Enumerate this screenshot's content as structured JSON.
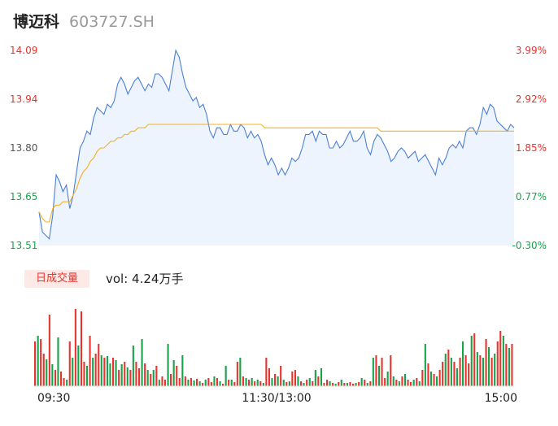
{
  "header": {
    "stock_name": "博迈科",
    "stock_code": "603727.SH"
  },
  "chart_data": [
    {
      "type": "line",
      "title": "",
      "series": [],
      "y_ticks": [
        "14.09",
        "13.94",
        "13.80",
        "13.65",
        "13.51"
      ],
      "pct_ticks": [
        "3.99%",
        "2.92%",
        "1.85%",
        "0.77%",
        "-0.30%"
      ],
      "ylim": [
        13.51,
        14.09
      ],
      "price": [
        13.61,
        13.55,
        13.54,
        13.53,
        13.6,
        13.72,
        13.7,
        13.67,
        13.69,
        13.62,
        13.66,
        13.73,
        13.8,
        13.82,
        13.85,
        13.84,
        13.89,
        13.92,
        13.91,
        13.9,
        13.93,
        13.92,
        13.94,
        13.99,
        14.01,
        13.99,
        13.96,
        13.98,
        14.0,
        14.01,
        13.99,
        13.97,
        13.99,
        13.98,
        14.02,
        14.02,
        14.01,
        13.99,
        13.97,
        14.03,
        14.09,
        14.07,
        14.02,
        13.98,
        13.96,
        13.94,
        13.95,
        13.92,
        13.93,
        13.9,
        13.85,
        13.83,
        13.86,
        13.86,
        13.84,
        13.84,
        13.87,
        13.85,
        13.85,
        13.87,
        13.86,
        13.83,
        13.85,
        13.83,
        13.84,
        13.82,
        13.78,
        13.75,
        13.77,
        13.75,
        13.72,
        13.74,
        13.72,
        13.74,
        13.77,
        13.76,
        13.77,
        13.8,
        13.84,
        13.84,
        13.85,
        13.82,
        13.85,
        13.84,
        13.84,
        13.8,
        13.8,
        13.82,
        13.8,
        13.81,
        13.83,
        13.85,
        13.82,
        13.82,
        13.83,
        13.85,
        13.8,
        13.78,
        13.82,
        13.84,
        13.83,
        13.81,
        13.79,
        13.76,
        13.77,
        13.79,
        13.8,
        13.79,
        13.77,
        13.78,
        13.79,
        13.76,
        13.77,
        13.78,
        13.76,
        13.74,
        13.72,
        13.77,
        13.75,
        13.77,
        13.8,
        13.81,
        13.8,
        13.82,
        13.8,
        13.85,
        13.86,
        13.86,
        13.84,
        13.87,
        13.92,
        13.9,
        13.93,
        13.92,
        13.88,
        13.87,
        13.86,
        13.85,
        13.87,
        13.86
      ],
      "avg_price": [
        13.61,
        13.59,
        13.58,
        13.58,
        13.62,
        13.63,
        13.63,
        13.64,
        13.64,
        13.64,
        13.66,
        13.68,
        13.71,
        13.73,
        13.74,
        13.76,
        13.77,
        13.79,
        13.8,
        13.8,
        13.81,
        13.82,
        13.82,
        13.83,
        13.83,
        13.84,
        13.84,
        13.85,
        13.85,
        13.86,
        13.86,
        13.86,
        13.87,
        13.87,
        13.87,
        13.87,
        13.87,
        13.87,
        13.87,
        13.87,
        13.87,
        13.87,
        13.87,
        13.87,
        13.87,
        13.87,
        13.87,
        13.87,
        13.87,
        13.87,
        13.87,
        13.87,
        13.87,
        13.87,
        13.87,
        13.87,
        13.87,
        13.87,
        13.87,
        13.87,
        13.87,
        13.87,
        13.87,
        13.87,
        13.87,
        13.87,
        13.86,
        13.86,
        13.86,
        13.86,
        13.86,
        13.86,
        13.86,
        13.86,
        13.86,
        13.86,
        13.86,
        13.86,
        13.86,
        13.86,
        13.86,
        13.86,
        13.86,
        13.86,
        13.86,
        13.86,
        13.86,
        13.86,
        13.86,
        13.86,
        13.86,
        13.86,
        13.86,
        13.86,
        13.86,
        13.86,
        13.86,
        13.86,
        13.86,
        13.86,
        13.85,
        13.85,
        13.85,
        13.85,
        13.85,
        13.85,
        13.85,
        13.85,
        13.85,
        13.85,
        13.85,
        13.85,
        13.85,
        13.85,
        13.85,
        13.85,
        13.85,
        13.85,
        13.85,
        13.85,
        13.85,
        13.85,
        13.85,
        13.85,
        13.85,
        13.85,
        13.85,
        13.85,
        13.85,
        13.85,
        13.85,
        13.85,
        13.85,
        13.85,
        13.85,
        13.85,
        13.85,
        13.85,
        13.85,
        13.85
      ]
    },
    {
      "type": "bar",
      "title": "日成交量",
      "volume_label": "vol: 4.24万手",
      "x_ticks": [
        "09:30",
        "11:30/13:00",
        "15:00"
      ],
      "values": [
        0.55,
        0.62,
        0.58,
        0.4,
        0.33,
        0.88,
        0.27,
        0.2,
        0.6,
        0.18,
        0.1,
        0.08,
        0.55,
        0.35,
        0.95,
        0.5,
        0.92,
        0.3,
        0.25,
        0.62,
        0.35,
        0.4,
        0.52,
        0.38,
        0.35,
        0.37,
        0.28,
        0.35,
        0.32,
        0.2,
        0.27,
        0.3,
        0.23,
        0.2,
        0.5,
        0.3,
        0.22,
        0.58,
        0.28,
        0.2,
        0.15,
        0.2,
        0.25,
        0.08,
        0.12,
        0.08,
        0.52,
        0.15,
        0.32,
        0.25,
        0.1,
        0.38,
        0.12,
        0.08,
        0.1,
        0.07,
        0.09,
        0.06,
        0.04,
        0.08,
        0.1,
        0.05,
        0.12,
        0.1,
        0.06,
        0.03,
        0.25,
        0.08,
        0.08,
        0.05,
        0.3,
        0.35,
        0.12,
        0.1,
        0.08,
        0.1,
        0.06,
        0.08,
        0.06,
        0.04,
        0.35,
        0.22,
        0.1,
        0.15,
        0.12,
        0.25,
        0.08,
        0.05,
        0.06,
        0.18,
        0.2,
        0.12,
        0.06,
        0.04,
        0.08,
        0.1,
        0.06,
        0.2,
        0.12,
        0.22,
        0.04,
        0.08,
        0.06,
        0.04,
        0.03,
        0.05,
        0.08,
        0.04,
        0.04,
        0.05,
        0.03,
        0.04,
        0.05,
        0.1,
        0.08,
        0.04,
        0.06,
        0.35,
        0.38,
        0.25,
        0.35,
        0.1,
        0.18,
        0.38,
        0.12,
        0.08,
        0.06,
        0.12,
        0.15,
        0.08,
        0.05,
        0.08,
        0.1,
        0.06,
        0.2,
        0.52,
        0.28,
        0.18,
        0.15,
        0.12,
        0.2,
        0.3,
        0.4,
        0.45,
        0.35,
        0.3,
        0.22,
        0.35,
        0.55,
        0.38,
        0.28,
        0.62,
        0.65,
        0.42,
        0.38,
        0.35,
        0.58,
        0.48,
        0.35,
        0.4,
        0.55,
        0.68,
        0.62,
        0.52,
        0.47,
        0.52
      ],
      "up": [
        1,
        0,
        1,
        1,
        0,
        1,
        0,
        1,
        0,
        1,
        1,
        0,
        1,
        0,
        1,
        0,
        1,
        1,
        0,
        1,
        0,
        1,
        1,
        0,
        1,
        0,
        0,
        1,
        0,
        1,
        0,
        1,
        0,
        1,
        0,
        1,
        1,
        0,
        1,
        0,
        1,
        0,
        1,
        0,
        1,
        1,
        0,
        1,
        0,
        1,
        1,
        0,
        1,
        0,
        1,
        0,
        1,
        0,
        1,
        0,
        1,
        1,
        0,
        1,
        0,
        1,
        0,
        1,
        0,
        1,
        1,
        0,
        1,
        0,
        1,
        0,
        1,
        0,
        1,
        0,
        1,
        1,
        0,
        1,
        0,
        1,
        0,
        1,
        0,
        1,
        1,
        0,
        1,
        0,
        1,
        0,
        1,
        0,
        1,
        0,
        1,
        1,
        0,
        1,
        0,
        1,
        0,
        1,
        0,
        1,
        1,
        0,
        1,
        0,
        1,
        0,
        1,
        0,
        1,
        0,
        1,
        1,
        0,
        1,
        0,
        1,
        0,
        1,
        0,
        1,
        1,
        0,
        1,
        0,
        1,
        0,
        1,
        0,
        1,
        0,
        1,
        1,
        0,
        1,
        0,
        1,
        0,
        1,
        0,
        1,
        1,
        0,
        1,
        0,
        1,
        0,
        1,
        0,
        1,
        0,
        1,
        1,
        0,
        1,
        0,
        1
      ]
    }
  ],
  "colors": {
    "up": "#e8342d",
    "down": "#18a34a",
    "price_line": "#4a7fd8",
    "avg_line": "#f5b120",
    "area_fill": "#eef4fd"
  }
}
